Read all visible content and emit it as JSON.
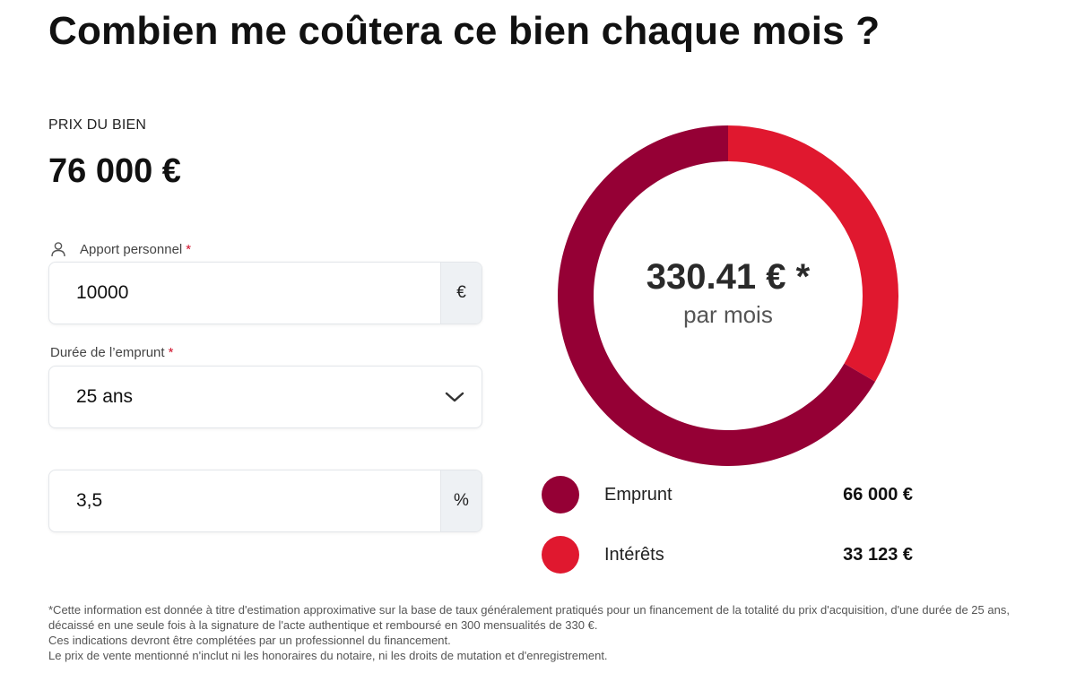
{
  "title": "Combien me coûtera ce bien chaque mois ?",
  "price": {
    "label": "PRIX DU BIEN",
    "value": "76 000 €"
  },
  "apport": {
    "label": "Apport personnel",
    "required_mark": "*",
    "value": "10000",
    "suffix": "€",
    "icon": "user-icon"
  },
  "duree": {
    "label": "Durée de l’emprunt",
    "required_mark": "*",
    "value": "25 ans",
    "icon": "chevron-down-icon"
  },
  "taux": {
    "value": "3,5",
    "suffix": "%"
  },
  "summary": {
    "monthly": "330.41 € *",
    "per_month": "par mois"
  },
  "chart_data": {
    "type": "pie",
    "style": "donut",
    "categories": [
      "Emprunt",
      "Intérêts"
    ],
    "values": [
      66000,
      33123
    ],
    "colors": [
      "#950035",
      "#e0182f"
    ]
  },
  "legend": [
    {
      "name": "Emprunt",
      "value": "66 000 €",
      "color": "#950035"
    },
    {
      "name": "Intérêts",
      "value": "33 123 €",
      "color": "#e0182f"
    }
  ],
  "footnote": {
    "line1": "*Cette information est donnée à titre d'estimation approximative sur la base de taux généralement pratiqués pour un financement de la totalité du prix d'acquisition, d'une durée de 25 ans, décaissé en une seule fois à la signature de l'acte authentique et remboursé en 300 mensualités de 330 €.",
    "line2": "Ces indications devront être complétées par un professionnel du financement.",
    "line3": "Le prix de vente mentionné n'inclut ni les honoraires du notaire, ni les droits de mutation et d'enregistrement."
  }
}
